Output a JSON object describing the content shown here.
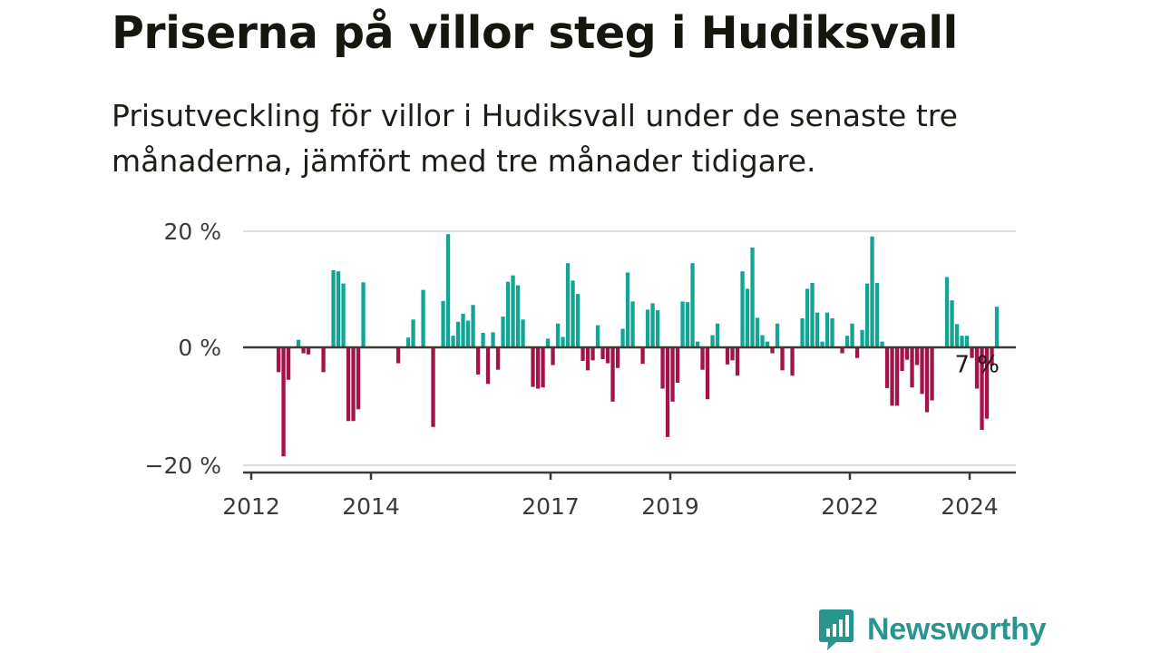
{
  "header": {
    "title": "Priserna på villor steg i Hudiksvall",
    "subtitle": "Prisutveckling för villor i Hudiksvall under de senaste tre månaderna, jämfört med tre månader tidigare."
  },
  "brand": {
    "name": "Newsworthy",
    "icon": "newsworthy-chart-bubble-icon",
    "color": "#2a958e"
  },
  "colors": {
    "positive": "#13a594",
    "negative": "#a3124a",
    "zero_line": "#3d3d36",
    "grid": "#dedede"
  },
  "chart_data": {
    "type": "bar",
    "title": "Priserna på villor steg i Hudiksvall",
    "subtitle": "Prisutveckling för villor i Hudiksvall under de senaste tre månaderna, jämfört med tre månader tidigare.",
    "xlabel": "",
    "ylabel": "",
    "x_start": "2012-01",
    "x_interval": "month",
    "ylim": [
      -20,
      20
    ],
    "yticks": [
      {
        "value": 20,
        "label": "20 %"
      },
      {
        "value": 0,
        "label": "0 %"
      },
      {
        "value": -20,
        "label": "−20 %"
      }
    ],
    "xticks": [
      {
        "month_index": 0,
        "label": "2012"
      },
      {
        "month_index": 24,
        "label": "2014"
      },
      {
        "month_index": 60,
        "label": "2017"
      },
      {
        "month_index": 84,
        "label": "2019"
      },
      {
        "month_index": 120,
        "label": "2022"
      },
      {
        "month_index": 144,
        "label": "2024"
      }
    ],
    "grid": true,
    "annotation": {
      "month_index": 145,
      "label": "7 %"
    },
    "values": [
      0,
      0,
      0,
      0,
      0,
      -4.2,
      -18.5,
      -5.5,
      0,
      1.3,
      -1,
      -1.2,
      0,
      0,
      -4.2,
      0,
      13.3,
      13.1,
      11,
      -12.5,
      -12.5,
      -10.5,
      11.2,
      0,
      0,
      0,
      0,
      0,
      0,
      -2.7,
      0,
      1.7,
      4.8,
      0,
      9.9,
      0,
      -13.5,
      0,
      8,
      19.5,
      2,
      4.4,
      5.8,
      4.6,
      7.3,
      -4.6,
      2.5,
      -6.2,
      2.6,
      -3.8,
      5.3,
      11.3,
      12.4,
      10.7,
      4.8,
      0,
      -6.7,
      -7,
      -6.8,
      1.5,
      -3,
      4.1,
      1.8,
      14.5,
      11.5,
      9.2,
      -2.3,
      -3.9,
      -2.2,
      3.8,
      -2,
      -2.7,
      -9.2,
      -3.5,
      3.2,
      12.9,
      7.9,
      0,
      -2.8,
      6.5,
      7.6,
      6.4,
      -7,
      -15.2,
      -9.2,
      -6,
      7.9,
      7.8,
      14.5,
      1,
      -3.8,
      -8.8,
      2.1,
      4.1,
      0,
      -2.9,
      -2.2,
      -4.8,
      13.1,
      10.1,
      17.2,
      5.1,
      2.1,
      1,
      -1,
      4.1,
      -3.9,
      0,
      -4.8,
      0,
      5,
      10.1,
      11.1,
      6,
      1,
      6,
      5,
      0,
      -1,
      2,
      4.1,
      -1.8,
      3,
      11,
      19.1,
      11.1,
      1,
      -6.9,
      -9.9,
      -9.9,
      -4,
      -2.1,
      -6.8,
      -3,
      -7.9,
      -11,
      -9,
      0,
      0,
      12.1,
      8.1,
      4,
      2,
      2,
      -1.8,
      -7,
      -14,
      -12.1,
      -3.1,
      7
    ]
  }
}
